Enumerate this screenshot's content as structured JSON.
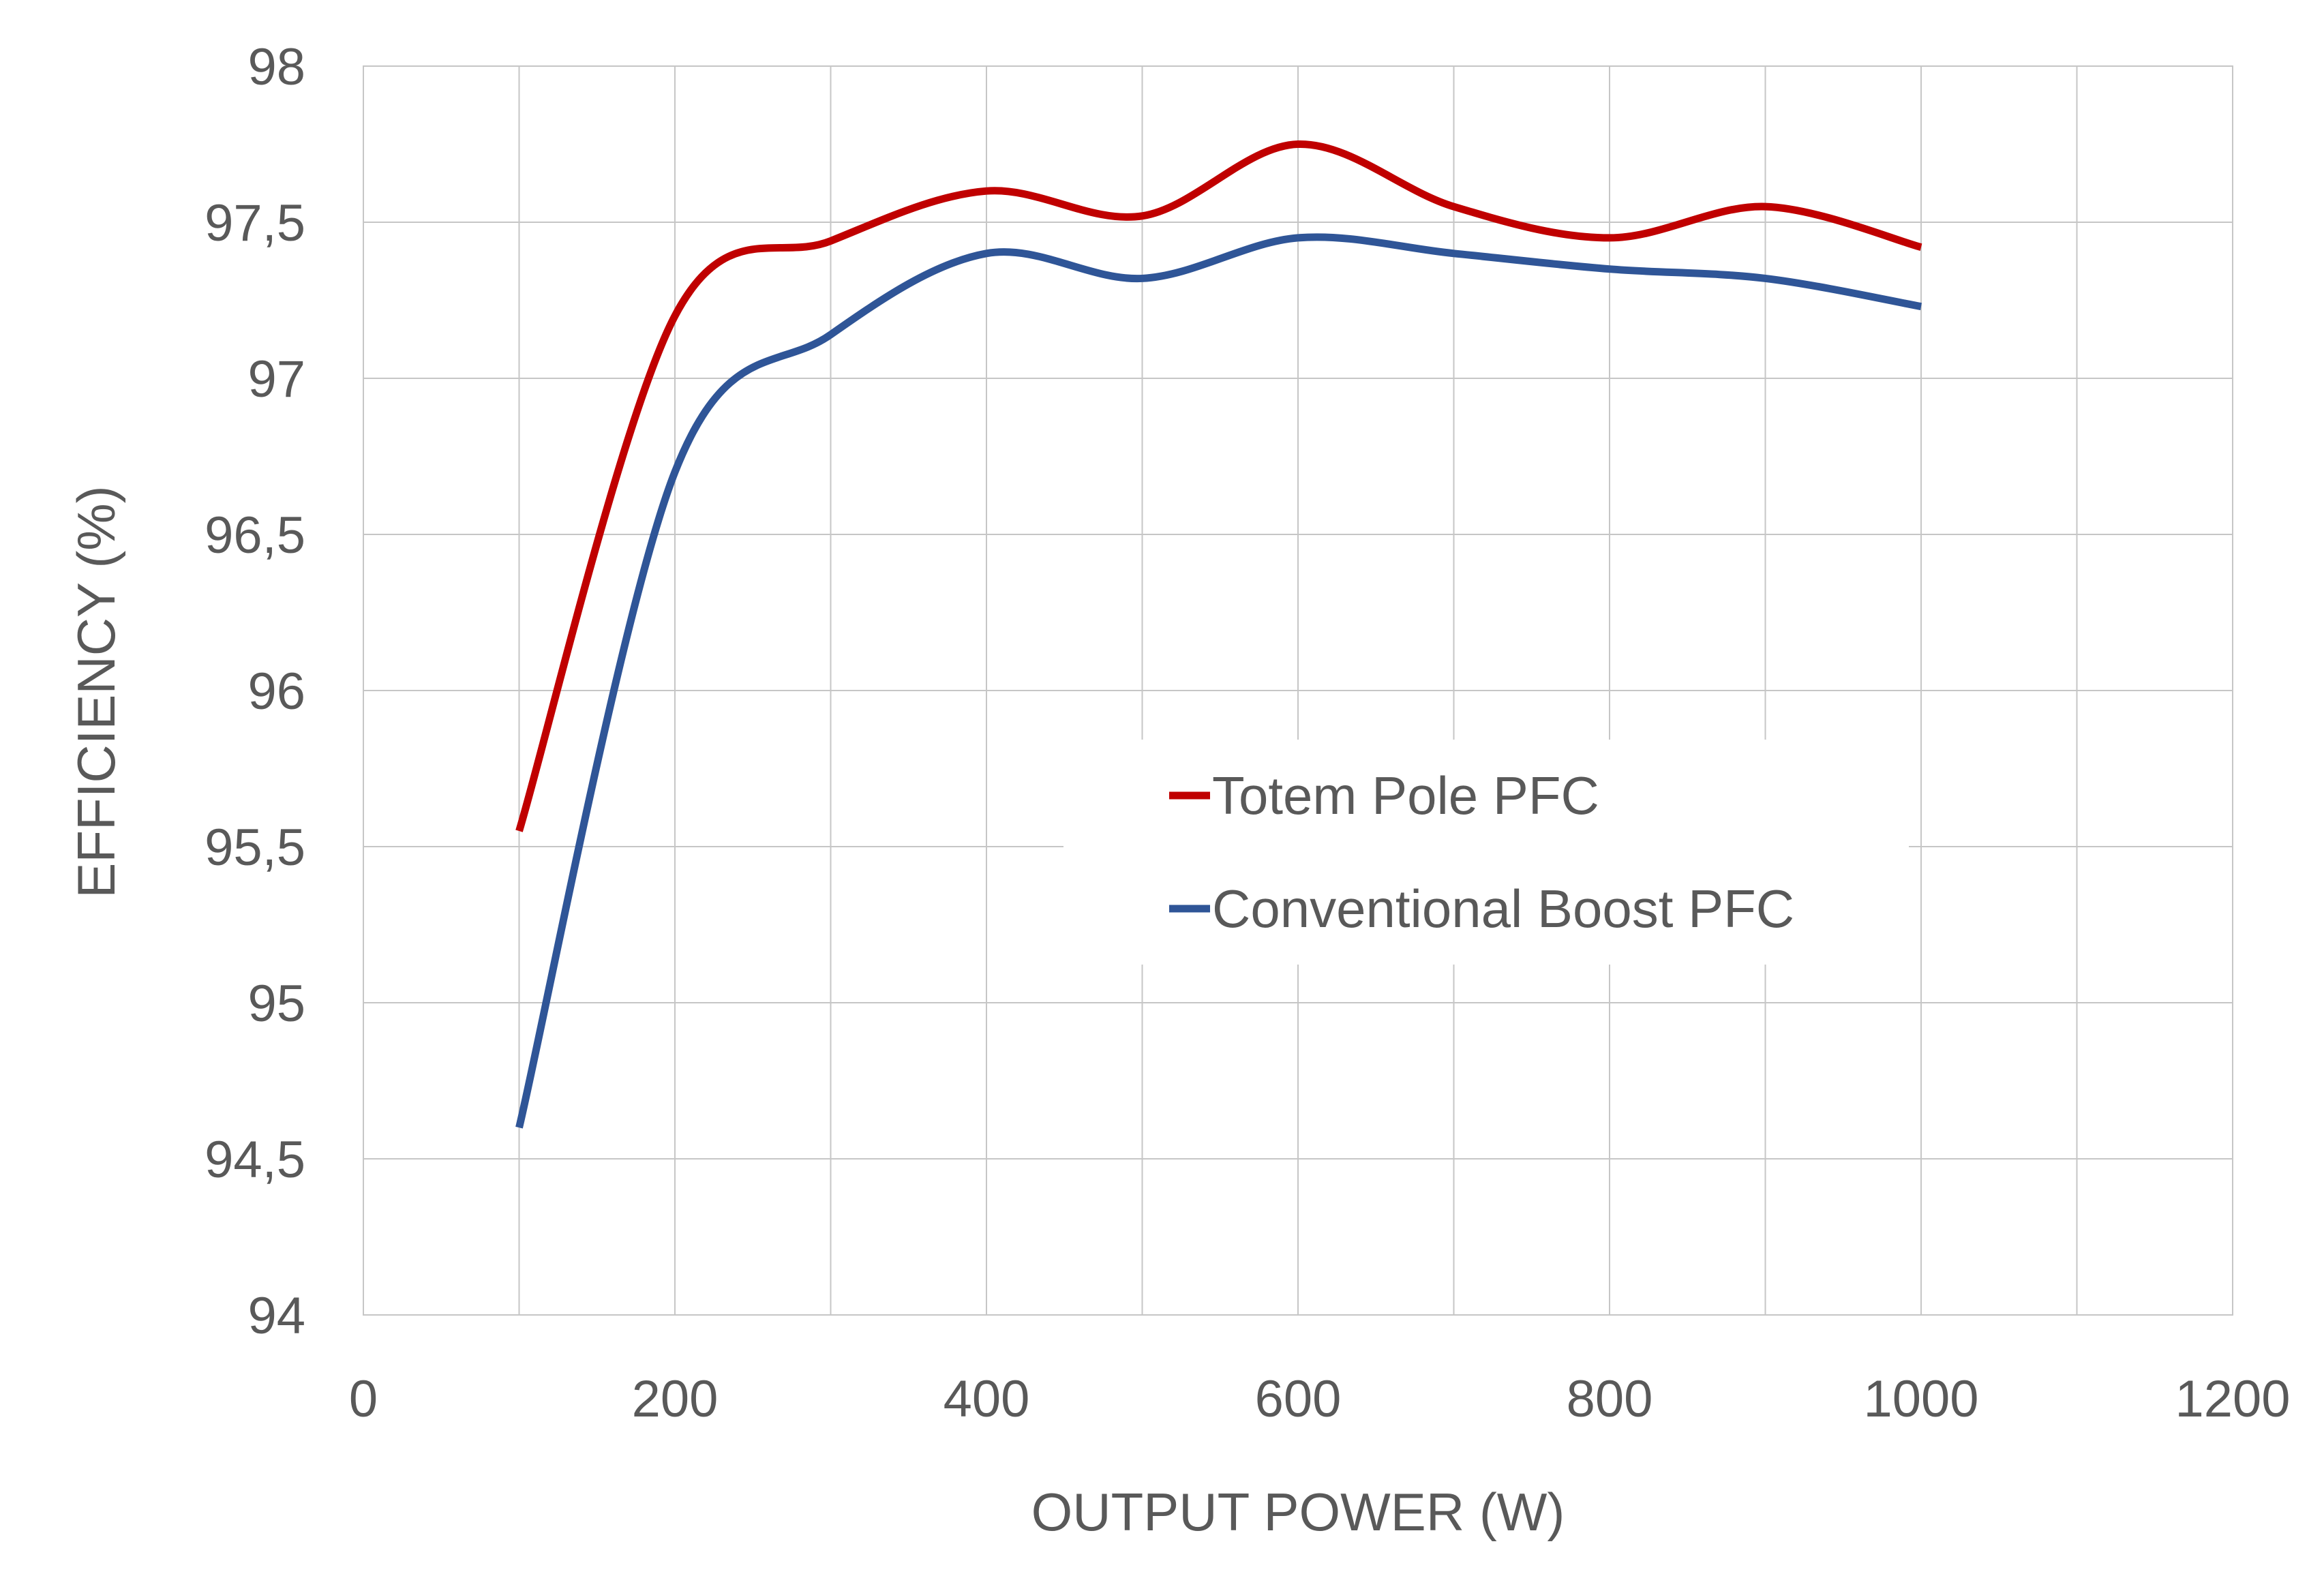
{
  "chart_data": {
    "type": "line",
    "title": "",
    "xlabel": "OUTPUT POWER (W)",
    "ylabel": "EFFICIENCY (%)",
    "xlim": [
      0,
      1200
    ],
    "ylim": [
      94,
      98
    ],
    "x_ticks": [
      "0",
      "200",
      "400",
      "600",
      "800",
      "1000",
      "1200"
    ],
    "y_ticks": [
      "94",
      "94,5",
      "95",
      "95,5",
      "96",
      "96,5",
      "97",
      "97,5",
      "98"
    ],
    "grid": true,
    "smooth": true,
    "legend_position": "center-right",
    "series": [
      {
        "name": "Totem Pole PFC",
        "color": "#c00000",
        "x": [
          100,
          200,
          300,
          400,
          500,
          600,
          700,
          800,
          900,
          1000
        ],
        "y": [
          95.55,
          97.2,
          97.44,
          97.6,
          97.52,
          97.75,
          97.55,
          97.45,
          97.55,
          97.42
        ]
      },
      {
        "name": "Conventional Boost PFC",
        "color": "#2f5597",
        "x": [
          100,
          200,
          300,
          400,
          500,
          600,
          700,
          800,
          900,
          1000
        ],
        "y": [
          94.6,
          96.7,
          97.14,
          97.4,
          97.32,
          97.45,
          97.4,
          97.35,
          97.32,
          97.23
        ]
      }
    ]
  }
}
